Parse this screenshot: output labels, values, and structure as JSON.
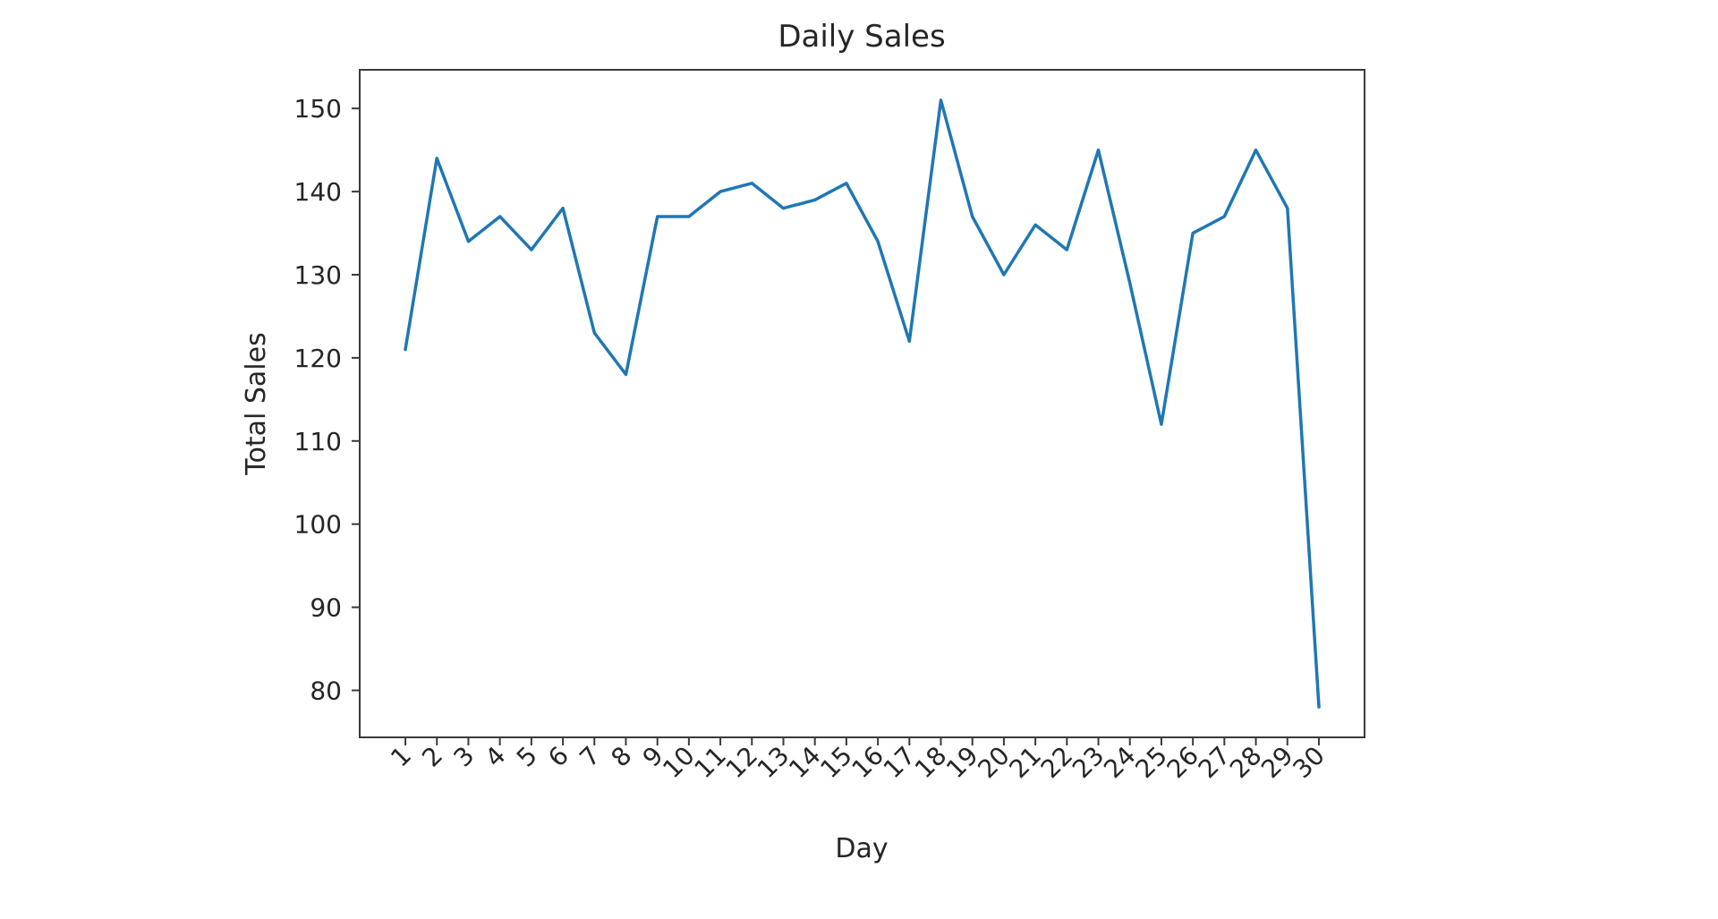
{
  "chart_data": {
    "type": "line",
    "title": "Daily Sales",
    "xlabel": "Day",
    "ylabel": "Total Sales",
    "x": [
      1,
      2,
      3,
      4,
      5,
      6,
      7,
      8,
      9,
      10,
      11,
      12,
      13,
      14,
      15,
      16,
      17,
      18,
      19,
      20,
      21,
      22,
      23,
      24,
      25,
      26,
      27,
      28,
      29,
      30
    ],
    "values": [
      121,
      144,
      134,
      137,
      133,
      138,
      123,
      118,
      137,
      137,
      140,
      141,
      138,
      139,
      141,
      134,
      122,
      151,
      137,
      130,
      136,
      133,
      145,
      129,
      112,
      135,
      137,
      145,
      138,
      78
    ],
    "series_name": "Total Sales",
    "xticks": [
      "1",
      "2",
      "3",
      "4",
      "5",
      "6",
      "7",
      "8",
      "9",
      "10",
      "11",
      "12",
      "13",
      "14",
      "15",
      "16",
      "17",
      "18",
      "19",
      "20",
      "21",
      "22",
      "23",
      "24",
      "25",
      "26",
      "27",
      "28",
      "29",
      "30"
    ],
    "yticks": [
      80,
      90,
      100,
      110,
      120,
      130,
      140,
      150
    ],
    "xlim": [
      -0.45,
      31.45
    ],
    "ylim": [
      74.35,
      154.65
    ],
    "x_tick_rotation_deg": 45,
    "grid": false,
    "legend": "none",
    "line_color": "#1f77b4",
    "text_color": "#262626",
    "background_color": "#ffffff"
  }
}
